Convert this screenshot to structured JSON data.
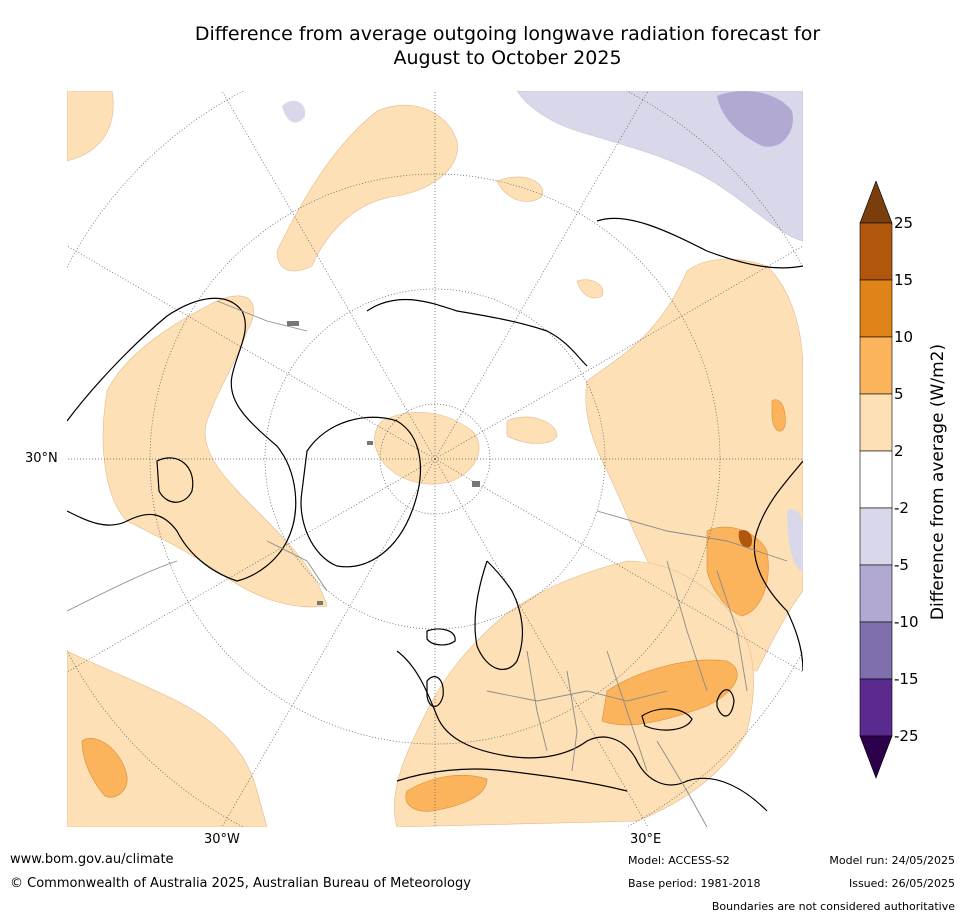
{
  "title": {
    "line1": "Difference from average outgoing longwave radiation forecast for",
    "line2": "August to October 2025"
  },
  "map": {
    "projection": "north-polar-stereographic",
    "coordinate_labels": {
      "lat_30n": "30°N",
      "lon_30w": "30°W",
      "lon_30e": "30°E"
    }
  },
  "colorbar": {
    "title": "Difference from average (W/m2)",
    "tick_labels": [
      "25",
      "15",
      "10",
      "5",
      "2",
      "-2",
      "-5",
      "-10",
      "-15",
      "-25"
    ],
    "bands_top_to_bottom": [
      {
        "range": "> 25",
        "color": "#7a3e0d"
      },
      {
        "range": "15 to 25",
        "color": "#b0570d"
      },
      {
        "range": "10 to 15",
        "color": "#e08318"
      },
      {
        "range": "5 to 10",
        "color": "#fbb45c"
      },
      {
        "range": "2 to 5",
        "color": "#fde0b5"
      },
      {
        "range": "-2 to 2",
        "color": "#ffffff"
      },
      {
        "range": "-5 to -2",
        "color": "#d8d8ea"
      },
      {
        "range": "-10 to -5",
        "color": "#b1a9d1"
      },
      {
        "range": "-15 to -10",
        "color": "#7f6fad"
      },
      {
        "range": "-25 to -15",
        "color": "#5a2a8f"
      },
      {
        "range": "< -25",
        "color": "#2d004b"
      }
    ]
  },
  "footer": {
    "website": "www.bom.gov.au/climate",
    "copyright": "© Commonwealth of Australia 2025, Australian Bureau of Meteorology",
    "model": "Model: ACCESS-S2",
    "base_period": "Base period: 1981-2018",
    "model_run": "Model run: 24/05/2025",
    "issued": "Issued: 26/05/2025",
    "disclaimer": "Boundaries are not considered authoritative"
  }
}
